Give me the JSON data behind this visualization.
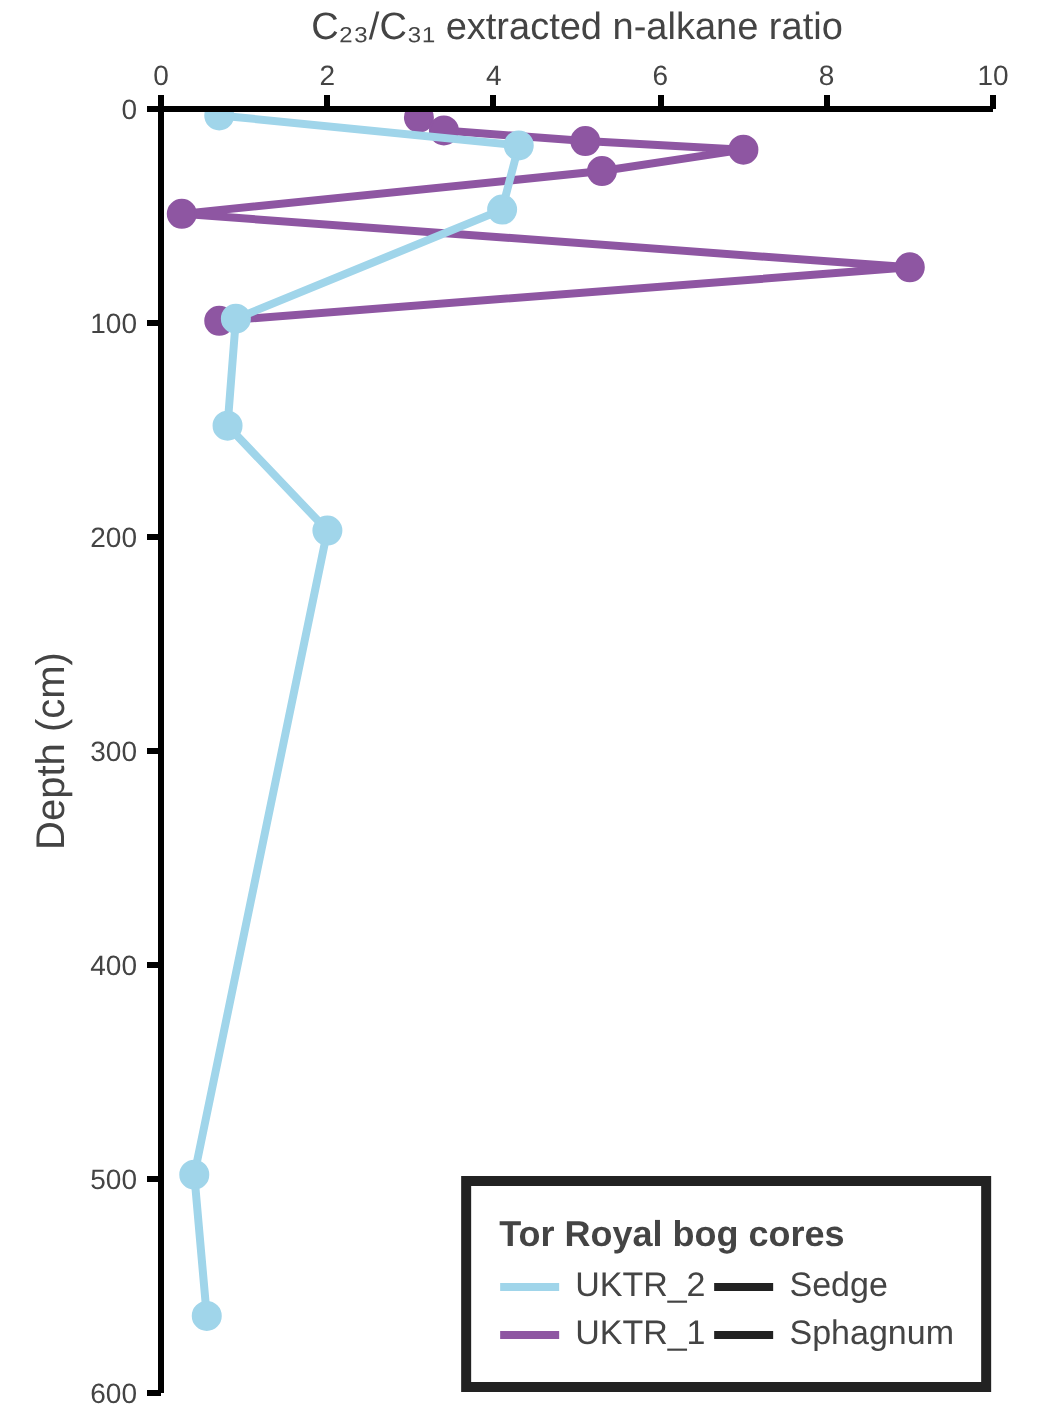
{
  "chart_data": {
    "type": "line",
    "xlabel": "C₂₃/C₃₁ extracted n-alkane ratio",
    "ylabel": "Depth (cm)",
    "legend_title": "Tor Royal bog cores",
    "xlim": [
      0,
      10
    ],
    "xticks": [
      0,
      2,
      4,
      6,
      8,
      10
    ],
    "ylim": [
      600,
      0
    ],
    "yticks": [
      0,
      100,
      200,
      300,
      400,
      500,
      600
    ],
    "grid": false,
    "legend": "bottom right",
    "marker": "circle",
    "line_style": "solid",
    "series": [
      {
        "name": "UKTR_2",
        "color": "#a0d5ea",
        "x": [
          0.7,
          4.3,
          4.1,
          0.9,
          0.8,
          2.0,
          0.4,
          0.55
        ],
        "values": [
          3,
          17,
          47,
          98,
          148,
          197,
          498,
          564
        ]
      },
      {
        "name": "UKTR_1",
        "color": "#8e56a2",
        "x": [
          3.1,
          3.4,
          5.1,
          7.0,
          5.3,
          0.25,
          9.0,
          0.7
        ],
        "values": [
          4,
          10,
          15,
          19,
          29,
          49,
          74,
          99
        ]
      },
      {
        "name": "Sedge",
        "color": "#222222"
      },
      {
        "name": "Sphagnum",
        "color": "#222222"
      }
    ]
  }
}
